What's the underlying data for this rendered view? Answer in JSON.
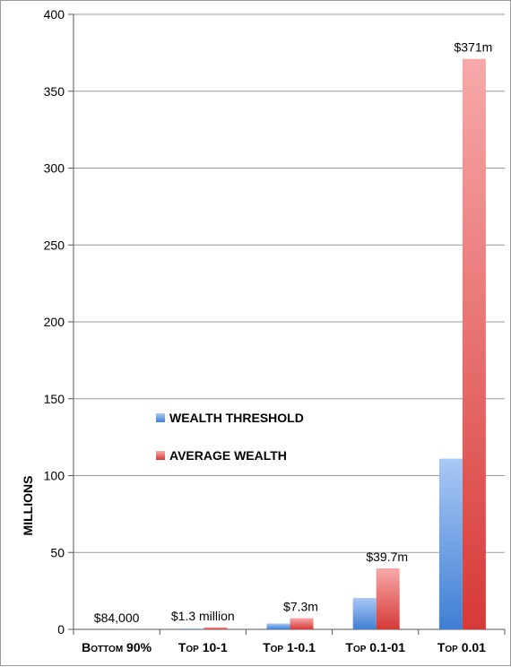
{
  "chart_data": {
    "type": "bar",
    "title": "",
    "xlabel": "",
    "ylabel": "MILLIONS",
    "ylim": [
      0,
      400
    ],
    "yticks": [
      0,
      50,
      100,
      150,
      200,
      250,
      300,
      350,
      400
    ],
    "grid": true,
    "legend_position": "center-left",
    "categories": [
      "Bottom 90%",
      "Top 10-1",
      "Top 1-0.1",
      "Top 0.1-01",
      "Top 0.01"
    ],
    "series": [
      {
        "name": "WEALTH THRESHOLD",
        "color": "#4a86d6",
        "color_light": "#a9c8f4",
        "values": [
          0,
          0.5,
          3.8,
          20.4,
          111
        ]
      },
      {
        "name": "AVERAGE WEALTH",
        "color": "#d9423e",
        "color_light": "#f5a3a3",
        "values": [
          0.084,
          1.3,
          7.3,
          39.7,
          371
        ]
      }
    ],
    "data_labels": [
      "$84,000",
      "$1.3 million",
      "$7.3m",
      "$39.7m",
      "$371m"
    ]
  }
}
